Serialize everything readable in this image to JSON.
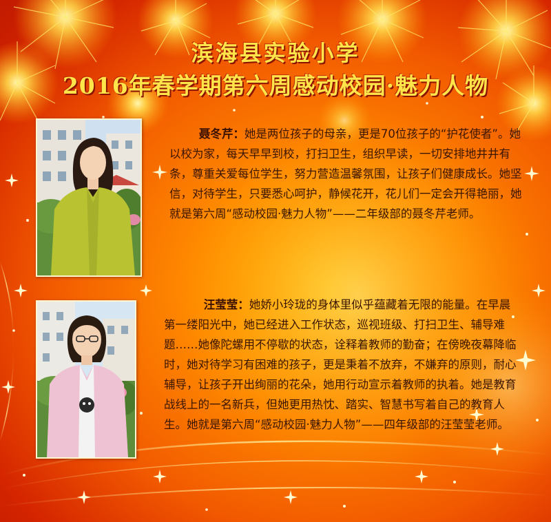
{
  "header": {
    "school_name": "滨海县实验小学",
    "subtitle": "2016年春学期第六周感动校园·魅力人物"
  },
  "profiles": [
    {
      "name": "聂冬芹",
      "bio": "她是两位孩子的母亲，更是70位孩子的“护花使者”。她以校为家，每天早早到校，打扫卫生，组织早读，一切安排地井井有条，尊重关爱每位学生，努力营造温馨氛围，让孩子们健康成长。她坚信，对待学生，只要悉心呵护，静候花开，花儿们一定会开得艳丽，她就是第六周“感动校园·魅力人物”——二年级部的聂冬芹老师。"
    },
    {
      "name": "汪莹莹",
      "bio": "她娇小玲珑的身体里似乎蕴藏着无限的能量。在早晨第一缕阳光中，她已经进入工作状态，巡视班级、打扫卫生、辅导难题……她像陀螺用不停歇的状态，诠释着教师的勤奋；在傍晚夜幕降临时，她对待学习有困难的孩子，更是秉着不放弃，不嫌弃的原则，耐心辅导，让孩子开出绚丽的花朵，她用行动宣示着教师的执着。她是教育战线上的一名新兵，但她更用热忱、踏实、智慧书写着自己的教育人生。她就是第六周“感动校园·魅力人物”——四年级部的汪莹莹老师。"
    }
  ],
  "colors": {
    "title": "#ffe54a",
    "text": "#3a1500",
    "background_center": "#ffb400",
    "background_edge": "#c01a00"
  }
}
